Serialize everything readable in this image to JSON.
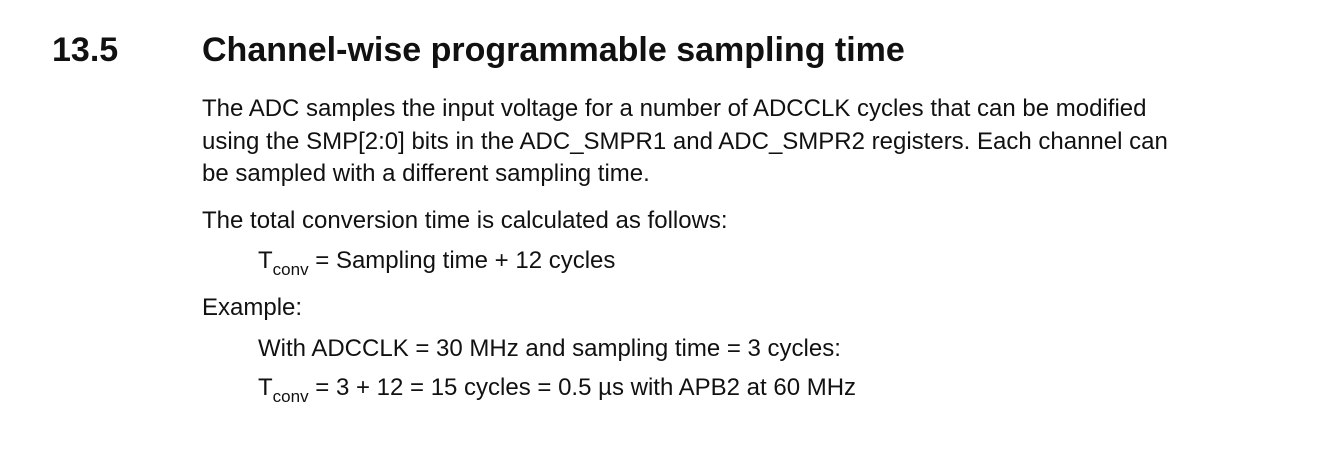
{
  "section": {
    "number": "13.5",
    "title": "Channel-wise programmable sampling time"
  },
  "intro": {
    "line1": "The ADC samples the input voltage for a number of ADCCLK cycles that can be modified",
    "line2": "using the SMP[2:0] bits in the ADC_SMPR1 and ADC_SMPR2 registers. Each channel can",
    "line3": "be sampled with a different sampling time."
  },
  "conversion": {
    "intro": "The total conversion time is calculated as follows:",
    "formula_symbol": "T",
    "formula_subscript": "conv",
    "formula_rhs": " = Sampling time + 12 cycles"
  },
  "example": {
    "label": "Example:",
    "condition": "With ADCCLK = 30 MHz and sampling time = 3 cycles:",
    "result_symbol": "T",
    "result_subscript": "conv",
    "result_rhs": " = 3 + 12 = 15 cycles = 0.5 µs with APB2 at 60 MHz"
  }
}
